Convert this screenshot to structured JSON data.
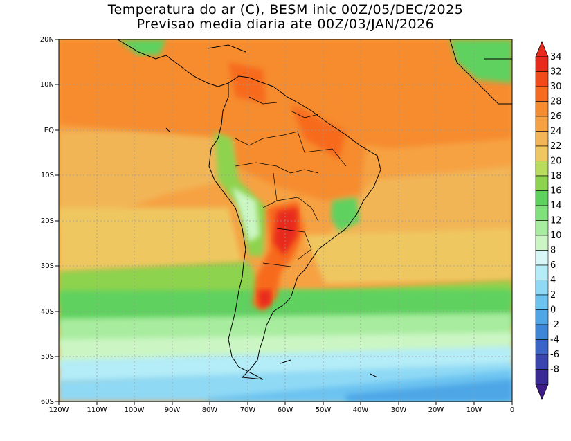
{
  "title": {
    "line1": "Temperatura do ar (C), BESM inic 00Z/05/DEC/2025",
    "line2": "Previsao media diaria ate 00Z/03/JAN/2026"
  },
  "map": {
    "lat_labels": [
      "20N",
      "10N",
      "EQ",
      "10S",
      "20S",
      "30S",
      "40S",
      "50S",
      "60S"
    ],
    "lon_labels": [
      "120W",
      "110W",
      "100W",
      "90W",
      "80W",
      "70W",
      "60W",
      "50W",
      "40W",
      "30W",
      "20W",
      "10W",
      "0"
    ]
  },
  "colorbar": {
    "labels": [
      "34",
      "32",
      "30",
      "28",
      "26",
      "24",
      "22",
      "20",
      "18",
      "16",
      "14",
      "12",
      "10",
      "8",
      "6",
      "4",
      "2",
      "0",
      "-2",
      "-4",
      "-6",
      "-8"
    ],
    "colors": [
      "#e8291c",
      "#f24b1a",
      "#f76b1e",
      "#f68c2e",
      "#f6a243",
      "#f2b557",
      "#efc760",
      "#b9dc5c",
      "#8ed34d",
      "#5fd15f",
      "#80e07c",
      "#a8ec9f",
      "#cbf6c4",
      "#d8f6f5",
      "#b4ecf7",
      "#8fd9f5",
      "#6cc3f0",
      "#4ea6e6",
      "#3f86d9",
      "#3a64c8",
      "#3a45b0",
      "#3a2a96"
    ],
    "tip_top": "#e8291c",
    "tip_bottom": "#3d1c8a"
  }
}
